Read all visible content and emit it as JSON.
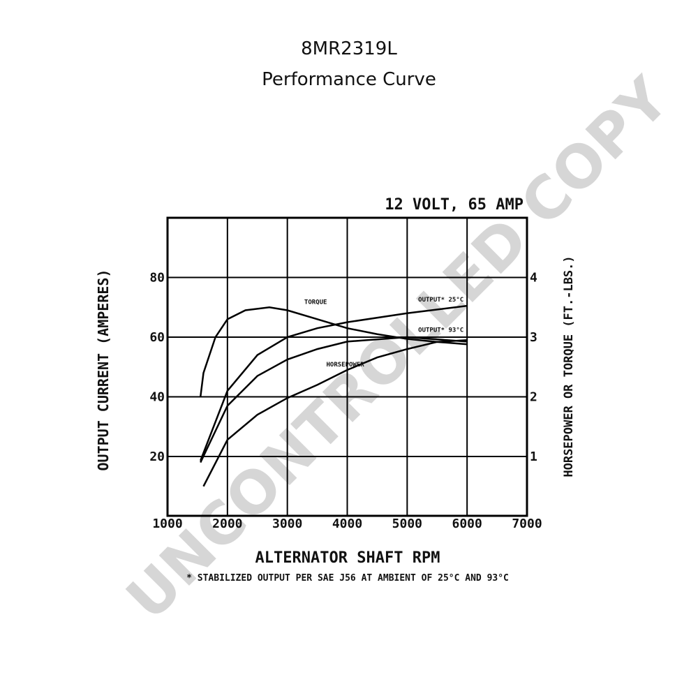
{
  "chart_data": {
    "type": "line",
    "title": "8MR2319L",
    "subtitle": "Performance Curve",
    "annotation": "12 VOLT, 65 AMP",
    "xlabel": "ALTERNATOR SHAFT RPM",
    "ylabel": "OUTPUT CURRENT (AMPERES)",
    "y2label": "HORSEPOWER OR TORQUE (FT.-LBS.)",
    "footnote": "* STABILIZED OUTPUT PER SAE J56 AT AMBIENT OF 25°C AND 93°C",
    "watermark": "UNCONTROLLED COPY",
    "xlim": [
      1000,
      7000
    ],
    "xticks": [
      1000,
      2000,
      3000,
      4000,
      5000,
      6000,
      7000
    ],
    "ylim": [
      0,
      100
    ],
    "yticks": [
      20,
      40,
      60,
      80
    ],
    "y2lim": [
      0,
      5
    ],
    "y2ticks": [
      1,
      2,
      3,
      4
    ],
    "grid": true,
    "series": [
      {
        "name": "TORQUE",
        "color": "#000000",
        "axis": "y2",
        "x": [
          1550,
          1600,
          1800,
          2000,
          2300,
          2700,
          3000,
          3500,
          4000,
          4500,
          5000,
          5500,
          6000
        ],
        "values": [
          2.0,
          2.4,
          3.0,
          3.3,
          3.45,
          3.5,
          3.45,
          3.3,
          3.15,
          3.05,
          2.97,
          2.92,
          2.88
        ]
      },
      {
        "name": "OUTPUT* 25°C",
        "color": "#000000",
        "x": [
          1550,
          2000,
          2500,
          3000,
          3500,
          4000,
          5000,
          6000
        ],
        "values": [
          18.6,
          42,
          54,
          60,
          63,
          65,
          68,
          70.5
        ]
      },
      {
        "name": "OUTPUT* 93°C",
        "color": "#000000",
        "x": [
          1550,
          2000,
          2500,
          3000,
          3500,
          4000,
          5000,
          6000
        ],
        "values": [
          18,
          37,
          47,
          52.5,
          56,
          58.5,
          60,
          58.5
        ]
      },
      {
        "name": "HORSEPOWER",
        "color": "#000000",
        "axis": "y2",
        "x": [
          1600,
          2000,
          2500,
          3000,
          3500,
          4000,
          4500,
          5000,
          5500,
          6000
        ],
        "values": [
          0.5,
          1.28,
          1.7,
          1.98,
          2.2,
          2.45,
          2.66,
          2.8,
          2.92,
          2.95
        ]
      }
    ]
  }
}
